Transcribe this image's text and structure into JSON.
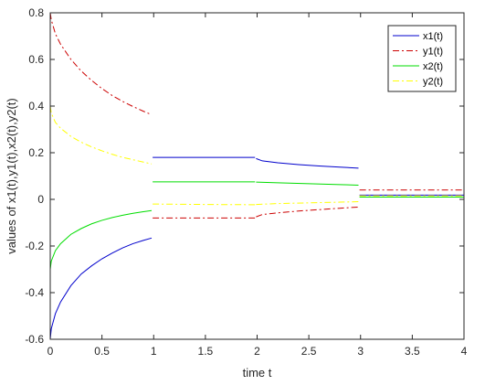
{
  "chart_data": {
    "type": "line",
    "title": "",
    "xlabel": "time t",
    "ylabel": "values of x1(t),y1(t),x2(t),y2(t)",
    "xlim": [
      0,
      4
    ],
    "ylim": [
      -0.6,
      0.8
    ],
    "xticks": [
      0,
      0.5,
      1,
      1.5,
      2,
      2.5,
      3,
      3.5,
      4
    ],
    "xtick_labels": [
      "0",
      "0.5",
      "1",
      "1.5",
      "2",
      "2.5",
      "3",
      "3.5",
      "4"
    ],
    "yticks": [
      -0.6,
      -0.4,
      -0.2,
      0,
      0.2,
      0.4,
      0.6,
      0.8
    ],
    "ytick_labels": [
      "-0.6",
      "-0.4",
      "-0.2",
      "0",
      "0.2",
      "0.4",
      "0.6",
      "0.8"
    ],
    "grid": false,
    "legend_position": "top-right",
    "series": [
      {
        "name": "x1(t)",
        "color": "#0000cc",
        "dash": "solid",
        "segments": [
          [
            [
              0,
              -0.6
            ],
            [
              0.01,
              -0.555
            ],
            [
              0.05,
              -0.49
            ],
            [
              0.1,
              -0.44
            ],
            [
              0.2,
              -0.37
            ],
            [
              0.3,
              -0.32
            ],
            [
              0.4,
              -0.285
            ],
            [
              0.5,
              -0.255
            ],
            [
              0.6,
              -0.23
            ],
            [
              0.7,
              -0.208
            ],
            [
              0.8,
              -0.19
            ],
            [
              0.9,
              -0.176
            ],
            [
              0.98,
              -0.166
            ]
          ],
          [
            [
              0.99,
              0.18
            ],
            [
              1.5,
              0.18
            ],
            [
              1.98,
              0.18
            ]
          ],
          [
            [
              1.99,
              0.175
            ],
            [
              2.05,
              0.165
            ],
            [
              2.2,
              0.157
            ],
            [
              2.4,
              0.149
            ],
            [
              2.6,
              0.143
            ],
            [
              2.8,
              0.138
            ],
            [
              2.98,
              0.134
            ]
          ],
          [
            [
              2.99,
              0.018
            ],
            [
              4,
              0.018
            ]
          ]
        ]
      },
      {
        "name": "y1(t)",
        "color": "#cc0000",
        "dash": "dashdot",
        "segments": [
          [
            [
              0,
              0.8
            ],
            [
              0.01,
              0.77
            ],
            [
              0.05,
              0.71
            ],
            [
              0.1,
              0.665
            ],
            [
              0.2,
              0.6
            ],
            [
              0.3,
              0.55
            ],
            [
              0.4,
              0.51
            ],
            [
              0.5,
              0.475
            ],
            [
              0.6,
              0.445
            ],
            [
              0.7,
              0.42
            ],
            [
              0.8,
              0.398
            ],
            [
              0.9,
              0.378
            ],
            [
              0.98,
              0.363
            ]
          ],
          [
            [
              0.99,
              -0.08
            ],
            [
              1.5,
              -0.08
            ],
            [
              1.98,
              -0.08
            ]
          ],
          [
            [
              1.99,
              -0.075
            ],
            [
              2.05,
              -0.065
            ],
            [
              2.2,
              -0.058
            ],
            [
              2.4,
              -0.05
            ],
            [
              2.6,
              -0.044
            ],
            [
              2.8,
              -0.038
            ],
            [
              2.98,
              -0.033
            ]
          ],
          [
            [
              2.99,
              0.04
            ],
            [
              4,
              0.04
            ]
          ]
        ]
      },
      {
        "name": "x2(t)",
        "color": "#00dd00",
        "dash": "solid",
        "segments": [
          [
            [
              0,
              -0.3
            ],
            [
              0.01,
              -0.265
            ],
            [
              0.05,
              -0.22
            ],
            [
              0.1,
              -0.19
            ],
            [
              0.2,
              -0.15
            ],
            [
              0.3,
              -0.125
            ],
            [
              0.4,
              -0.105
            ],
            [
              0.5,
              -0.09
            ],
            [
              0.6,
              -0.078
            ],
            [
              0.7,
              -0.068
            ],
            [
              0.8,
              -0.06
            ],
            [
              0.9,
              -0.053
            ],
            [
              0.98,
              -0.048
            ]
          ],
          [
            [
              0.99,
              0.075
            ],
            [
              1.5,
              0.075
            ],
            [
              1.98,
              0.075
            ]
          ],
          [
            [
              1.99,
              0.074
            ],
            [
              2.2,
              0.071
            ],
            [
              2.5,
              0.067
            ],
            [
              2.8,
              0.063
            ],
            [
              2.98,
              0.061
            ]
          ],
          [
            [
              2.99,
              0.01
            ],
            [
              4,
              0.01
            ]
          ]
        ]
      },
      {
        "name": "y2(t)",
        "color": "#ffff00",
        "dash": "dashdot",
        "segments": [
          [
            [
              0,
              0.4
            ],
            [
              0.01,
              0.37
            ],
            [
              0.05,
              0.33
            ],
            [
              0.1,
              0.305
            ],
            [
              0.2,
              0.27
            ],
            [
              0.3,
              0.245
            ],
            [
              0.4,
              0.225
            ],
            [
              0.5,
              0.208
            ],
            [
              0.6,
              0.193
            ],
            [
              0.7,
              0.18
            ],
            [
              0.8,
              0.17
            ],
            [
              0.9,
              0.16
            ],
            [
              0.98,
              0.152
            ]
          ],
          [
            [
              0.99,
              -0.02
            ],
            [
              1.5,
              -0.022
            ],
            [
              1.98,
              -0.023
            ]
          ],
          [
            [
              1.99,
              -0.022
            ],
            [
              2.2,
              -0.018
            ],
            [
              2.5,
              -0.015
            ],
            [
              2.8,
              -0.012
            ],
            [
              2.98,
              -0.01
            ]
          ],
          [
            [
              2.99,
              0.015
            ],
            [
              4,
              0.015
            ]
          ]
        ]
      }
    ]
  }
}
